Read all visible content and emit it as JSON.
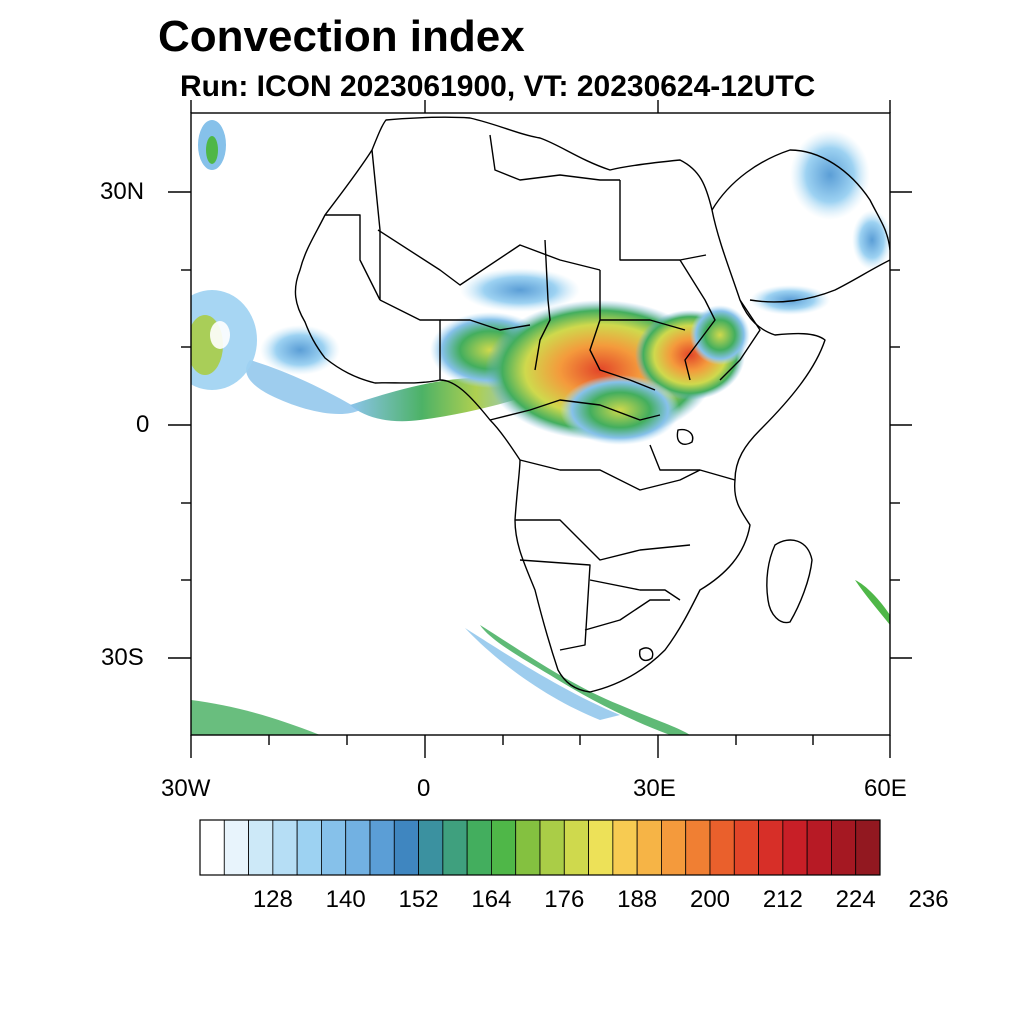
{
  "title": "Convection index",
  "subtitle": "Run: ICON 2023061900,  VT: 20230624-12UTC",
  "map": {
    "lat_labels": [
      "30N",
      "0",
      "30S"
    ],
    "lon_labels": [
      "30W",
      "0",
      "30E",
      "60E"
    ],
    "lon_range": [
      -30,
      60
    ],
    "lat_range": [
      -40,
      40
    ]
  },
  "colorbar": {
    "tick_labels": [
      "128",
      "140",
      "152",
      "164",
      "176",
      "188",
      "200",
      "212",
      "224",
      "236"
    ],
    "colors": [
      "#ffffff",
      "#e8f4fc",
      "#cde9f8",
      "#b6def5",
      "#9dd2f2",
      "#86c1ea",
      "#72b1e2",
      "#5b9ed6",
      "#3f86c0",
      "#3b91a0",
      "#3fa07e",
      "#43ae5e",
      "#4fb748",
      "#84c140",
      "#aacd47",
      "#cfd94d",
      "#ede158",
      "#f7cb52",
      "#f6b446",
      "#f49a3c",
      "#f07f33",
      "#ea602c",
      "#e24529",
      "#d72f28",
      "#c81f27",
      "#b71a25",
      "#a51822",
      "#921820"
    ]
  }
}
